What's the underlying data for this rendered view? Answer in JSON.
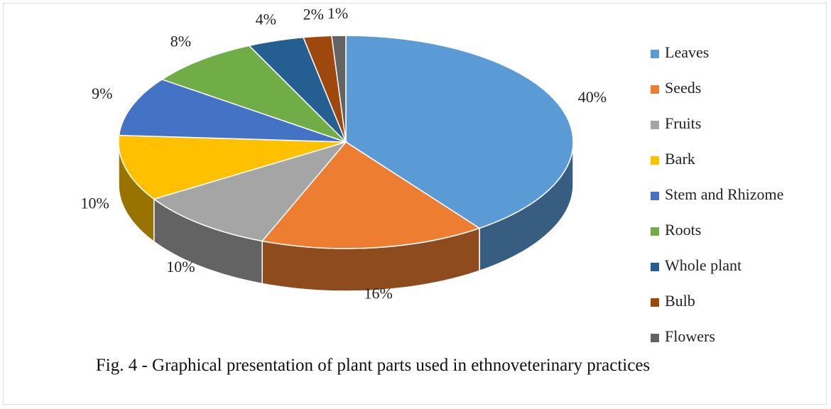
{
  "chart_data": {
    "type": "pie",
    "categories": [
      "Leaves",
      "Seeds",
      "Fruits",
      "Bark",
      "Stem and Rhizome",
      "Roots",
      "Whole plant",
      "Bulb",
      "Flowers"
    ],
    "values": [
      40,
      16,
      10,
      10,
      9,
      8,
      4,
      2,
      1
    ],
    "value_labels": [
      "40%",
      "16%",
      "10%",
      "10%",
      "9%",
      "8%",
      "4%",
      "2%",
      "1%"
    ],
    "colors": [
      "#5b9bd5",
      "#ed7d31",
      "#a5a5a5",
      "#ffc000",
      "#4472c4",
      "#70ad47",
      "#255e91",
      "#9e480e",
      "#636363"
    ],
    "legend": "right",
    "caption": "Fig. 4 - Graphical presentation of plant parts used in ethnoveterinary practices"
  }
}
